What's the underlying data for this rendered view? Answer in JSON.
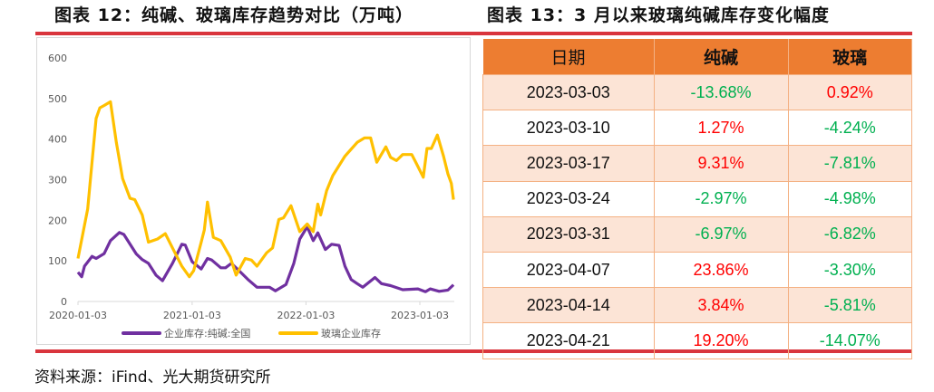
{
  "left_title": "图表 12：纯碱、玻璃库存趋势对比（万吨）",
  "right_title": "图表 13：3 月以来玻璃纯碱库存变化幅度",
  "source": "资料来源：iFind、光大期货研究所",
  "colors": {
    "soda_ash": "#7030A0",
    "glass": "#FFC000",
    "header": "#ED7D31",
    "row_alt": "#FCE4D6",
    "increase": "#FF0000",
    "decrease": "#00B050"
  },
  "chart_data": {
    "type": "line",
    "title": "图表 12：纯碱、玻璃库存趋势对比（万吨）",
    "xlabel": "",
    "ylabel": "",
    "ylim": [
      0,
      600
    ],
    "yticks": [
      "0",
      "100",
      "200",
      "300",
      "400",
      "500",
      "600"
    ],
    "xticks": [
      "2020-01-03",
      "2021-01-03",
      "2022-01-03",
      "2023-01-03"
    ],
    "xlim": [
      "2020-01-03",
      "2023-04-21"
    ],
    "grid": false,
    "legend": "bottom",
    "series": [
      {
        "name": "企业库存:纯碱:全国",
        "color": "#7030A0",
        "points": [
          [
            "2020-01-03",
            72
          ],
          [
            "2020-01-15",
            61
          ],
          [
            "2020-01-24",
            87
          ],
          [
            "2020-02-17",
            111
          ],
          [
            "2020-03-01",
            106
          ],
          [
            "2020-03-27",
            118
          ],
          [
            "2020-04-16",
            150
          ],
          [
            "2020-05-15",
            170
          ],
          [
            "2020-05-29",
            165
          ],
          [
            "2020-07-08",
            117
          ],
          [
            "2020-07-27",
            103
          ],
          [
            "2020-08-16",
            94
          ],
          [
            "2020-09-09",
            65
          ],
          [
            "2020-09-30",
            51
          ],
          [
            "2020-11-01",
            94
          ],
          [
            "2020-12-01",
            141
          ],
          [
            "2020-12-12",
            139
          ],
          [
            "2021-01-03",
            98
          ],
          [
            "2021-02-01",
            80
          ],
          [
            "2021-02-21",
            106
          ],
          [
            "2021-03-07",
            102
          ],
          [
            "2021-04-05",
            83
          ],
          [
            "2021-04-20",
            83
          ],
          [
            "2021-05-09",
            94
          ],
          [
            "2021-06-02",
            76
          ],
          [
            "2021-07-01",
            54
          ],
          [
            "2021-07-30",
            35
          ],
          [
            "2021-09-08",
            35
          ],
          [
            "2021-09-27",
            26
          ],
          [
            "2021-10-31",
            42
          ],
          [
            "2021-11-25",
            94
          ],
          [
            "2021-12-14",
            154
          ],
          [
            "2022-01-07",
            184
          ],
          [
            "2022-01-26",
            150
          ],
          [
            "2022-02-10",
            169
          ],
          [
            "2022-03-06",
            128
          ],
          [
            "2022-03-26",
            141
          ],
          [
            "2022-04-19",
            138
          ],
          [
            "2022-05-08",
            87
          ],
          [
            "2022-05-28",
            54
          ],
          [
            "2022-06-16",
            44
          ],
          [
            "2022-07-04",
            35
          ],
          [
            "2022-08-12",
            59
          ],
          [
            "2022-09-02",
            44
          ],
          [
            "2022-10-01",
            39
          ],
          [
            "2022-11-09",
            29
          ],
          [
            "2022-12-28",
            31
          ],
          [
            "2023-01-21",
            24
          ],
          [
            "2023-02-05",
            31
          ],
          [
            "2023-03-06",
            25
          ],
          [
            "2023-04-03",
            28
          ],
          [
            "2023-04-21",
            41
          ]
        ]
      },
      {
        "name": "玻璃企业库存",
        "color": "#FFC000",
        "points": [
          [
            "2020-01-03",
            106
          ],
          [
            "2020-02-03",
            228
          ],
          [
            "2020-02-13",
            310
          ],
          [
            "2020-03-01",
            451
          ],
          [
            "2020-03-13",
            477
          ],
          [
            "2020-03-27",
            483
          ],
          [
            "2020-04-16",
            492
          ],
          [
            "2020-05-05",
            392
          ],
          [
            "2020-05-25",
            303
          ],
          [
            "2020-06-18",
            254
          ],
          [
            "2020-07-03",
            251
          ],
          [
            "2020-07-27",
            213
          ],
          [
            "2020-08-16",
            146
          ],
          [
            "2020-09-14",
            154
          ],
          [
            "2020-10-09",
            167
          ],
          [
            "2020-11-01",
            132
          ],
          [
            "2020-12-01",
            87
          ],
          [
            "2020-12-25",
            61
          ],
          [
            "2021-01-08",
            76
          ],
          [
            "2021-02-01",
            146
          ],
          [
            "2021-02-11",
            176
          ],
          [
            "2021-02-21",
            245
          ],
          [
            "2021-03-12",
            158
          ],
          [
            "2021-04-05",
            150
          ],
          [
            "2021-05-05",
            109
          ],
          [
            "2021-05-24",
            65
          ],
          [
            "2021-06-22",
            106
          ],
          [
            "2021-07-12",
            102
          ],
          [
            "2021-07-30",
            87
          ],
          [
            "2021-08-30",
            120
          ],
          [
            "2021-09-18",
            132
          ],
          [
            "2021-10-08",
            202
          ],
          [
            "2021-10-23",
            206
          ],
          [
            "2021-11-16",
            236
          ],
          [
            "2021-12-14",
            172
          ],
          [
            "2022-01-07",
            191
          ],
          [
            "2022-01-26",
            172
          ],
          [
            "2022-02-10",
            240
          ],
          [
            "2022-02-19",
            213
          ],
          [
            "2022-03-10",
            273
          ],
          [
            "2022-03-30",
            310
          ],
          [
            "2022-05-08",
            358
          ],
          [
            "2022-06-16",
            392
          ],
          [
            "2022-07-10",
            403
          ],
          [
            "2022-07-29",
            403
          ],
          [
            "2022-08-18",
            343
          ],
          [
            "2022-09-16",
            381
          ],
          [
            "2022-10-01",
            355
          ],
          [
            "2022-10-20",
            347
          ],
          [
            "2022-11-09",
            362
          ],
          [
            "2022-12-08",
            362
          ],
          [
            "2022-12-23",
            340
          ],
          [
            "2023-01-14",
            306
          ],
          [
            "2023-01-26",
            377
          ],
          [
            "2023-02-09",
            377
          ],
          [
            "2023-02-28",
            410
          ],
          [
            "2023-03-20",
            358
          ],
          [
            "2023-04-03",
            314
          ],
          [
            "2023-04-14",
            291
          ],
          [
            "2023-04-21",
            251
          ]
        ]
      }
    ]
  },
  "table": {
    "headers": [
      "日期",
      "纯碱",
      "玻璃"
    ],
    "rows": [
      {
        "date": "2023-03-03",
        "soda": "-13.68%",
        "glass": "0.92%"
      },
      {
        "date": "2023-03-10",
        "soda": "1.27%",
        "glass": "-4.24%"
      },
      {
        "date": "2023-03-17",
        "soda": "9.31%",
        "glass": "-7.81%"
      },
      {
        "date": "2023-03-24",
        "soda": "-2.97%",
        "glass": "-4.98%"
      },
      {
        "date": "2023-03-31",
        "soda": "-6.97%",
        "glass": "-6.82%"
      },
      {
        "date": "2023-04-07",
        "soda": "23.86%",
        "glass": "-3.30%"
      },
      {
        "date": "2023-04-14",
        "soda": "3.84%",
        "glass": "-5.81%"
      },
      {
        "date": "2023-04-21",
        "soda": "19.20%",
        "glass": "-14.07%"
      }
    ]
  }
}
